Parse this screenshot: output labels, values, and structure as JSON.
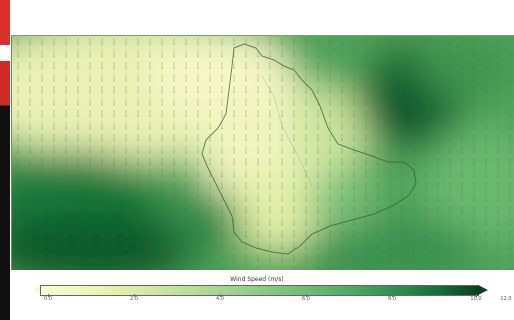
{
  "page": {
    "colors": {
      "light": "#f4f6c2",
      "mid": "#8ccc85",
      "dark": "#0a3f1f",
      "coast": "#3d5e3d",
      "left_strip_red": "#d9302b"
    },
    "icons": [
      "colorbar-left-arrow-icon",
      "colorbar-right-arrow-icon"
    ]
  },
  "colorbar": {
    "title": "Wind Speed (m/s)",
    "ticks": [
      "0.0",
      "2.0",
      "4.0",
      "6.0",
      "8.0",
      "10.0",
      "12.0"
    ]
  }
}
